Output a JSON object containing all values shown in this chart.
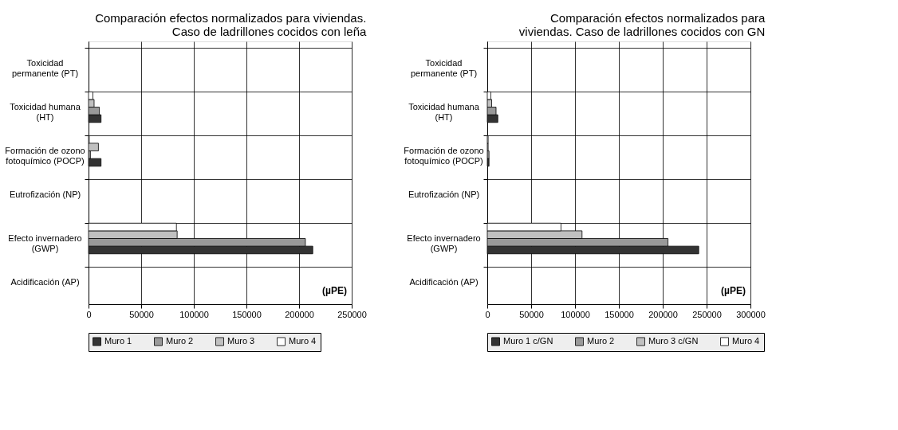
{
  "chart_data": [
    {
      "type": "bar",
      "orientation": "horizontal",
      "title": "Comparación efectos normalizados para viviendas.\nCaso de ladrillones cocidos con leña",
      "categories": [
        "Toxicidad\npermanente (PT)",
        "Toxicidad humana\n(HT)",
        "Formación de ozono\nfotoquímico (POCP)",
        "Eutrofización (NP)",
        "Efecto invernadero\n(GWP)",
        "Acidificación (AP)"
      ],
      "series": [
        {
          "name": "Muro 1",
          "color": "#333333",
          "values": [
            0,
            11900,
            11900,
            0,
            213000,
            0
          ]
        },
        {
          "name": "Muro 2",
          "color": "#999999",
          "values": [
            0,
            10300,
            1800,
            0,
            206000,
            0
          ]
        },
        {
          "name": "Muro 3",
          "color": "#c0c0c0",
          "values": [
            0,
            5300,
            9400,
            0,
            84200,
            0
          ]
        },
        {
          "name": "Muro 4",
          "color": "#ffffff",
          "values": [
            0,
            4100,
            700,
            0,
            83500,
            0
          ]
        }
      ],
      "xlim": [
        0,
        250000
      ],
      "xticks": [
        0,
        50000,
        100000,
        150000,
        200000,
        250000
      ],
      "annotations": [
        "(µPE)"
      ],
      "grid": true,
      "legend": "bottom"
    },
    {
      "type": "bar",
      "orientation": "horizontal",
      "title": "Comparación efectos normalizados para\nviviendas. Caso de ladrillones cocidos con GN",
      "categories": [
        "Toxicidad\npermanente (PT)",
        "Toxicidad humana\n(HT)",
        "Formación de ozono\nfotoquímico (POCP)",
        "Eutrofización (NP)",
        "Efecto invernadero\n(GWP)",
        "Acidificación (AP)"
      ],
      "series": [
        {
          "name": "Muro 1 c/GN",
          "color": "#333333",
          "values": [
            0,
            12000,
            2000,
            0,
            241000,
            0
          ]
        },
        {
          "name": "Muro 2",
          "color": "#999999",
          "values": [
            0,
            10000,
            2000,
            0,
            206000,
            0
          ]
        },
        {
          "name": "Muro 3 c/GN",
          "color": "#c0c0c0",
          "values": [
            0,
            5000,
            1000,
            0,
            108000,
            0
          ]
        },
        {
          "name": "Muro 4",
          "color": "#ffffff",
          "values": [
            0,
            4000,
            1000,
            0,
            84000,
            0
          ]
        }
      ],
      "xlim": [
        0,
        300000
      ],
      "xticks": [
        0,
        50000,
        100000,
        150000,
        200000,
        250000,
        300000
      ],
      "annotations": [
        "(µPE)"
      ],
      "grid": true,
      "legend": "bottom"
    }
  ]
}
